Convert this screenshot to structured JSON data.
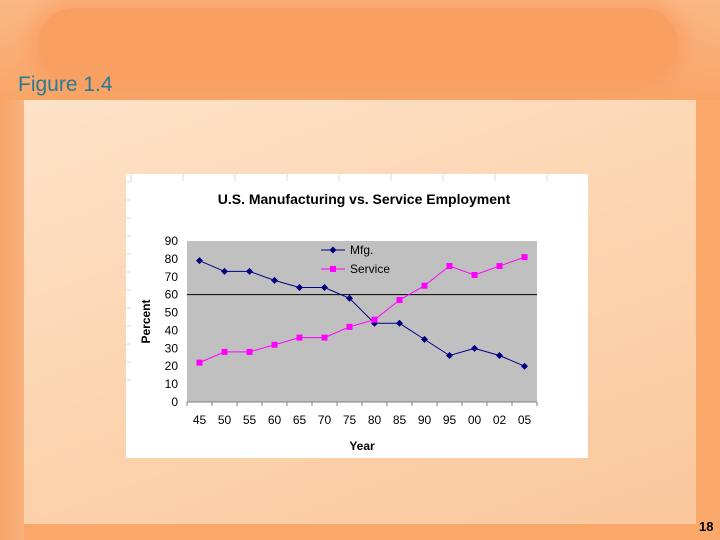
{
  "slide": {
    "title": "Figure 1.4",
    "page_number": "18"
  },
  "chart_data": {
    "type": "line",
    "title": "U.S. Manufacturing vs. Service Employment",
    "xlabel": "Year",
    "ylabel": "Percent",
    "ylim": [
      0,
      90
    ],
    "yticks": [
      0,
      10,
      20,
      30,
      40,
      50,
      60,
      70,
      80,
      90
    ],
    "categories": [
      "45",
      "50",
      "55",
      "60",
      "65",
      "70",
      "75",
      "80",
      "85",
      "90",
      "95",
      "00",
      "02",
      "05"
    ],
    "reference_line": 60,
    "legend_position": "top-center",
    "series": [
      {
        "name": "Mfg.",
        "color": "#000080",
        "marker": "diamond",
        "values": [
          79,
          73,
          73,
          68,
          64,
          64,
          58,
          44,
          44,
          35,
          26,
          30,
          26,
          20
        ]
      },
      {
        "name": "Service",
        "color": "#ff00ff",
        "marker": "square",
        "values": [
          22,
          28,
          28,
          32,
          36,
          36,
          42,
          46,
          57,
          65,
          76,
          71,
          76,
          81
        ]
      }
    ],
    "plot_background": "#c0c0c0"
  }
}
